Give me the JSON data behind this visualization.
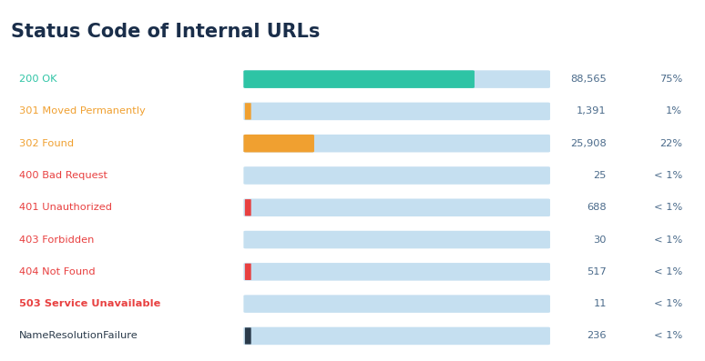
{
  "title": "Status Code of Internal URLs",
  "title_color": "#1a2e4a",
  "title_fontsize": 15,
  "background_color": "#ffffff",
  "panel_color": "#e8f4f9",
  "panel_border_color": "#b8dcea",
  "rows": [
    {
      "label": "200 OK",
      "label_color": "#2ec4a5",
      "bar_value": 75,
      "bar_color": "#2ec4a5",
      "count": "88,565",
      "pct": "75%",
      "tiny_bar": false,
      "bold": false
    },
    {
      "label": "301 Moved Permanently",
      "label_color": "#f0a030",
      "bar_value": 1.5,
      "bar_color": "#f0a030",
      "count": "1,391",
      "pct": "1%",
      "tiny_bar": true,
      "bold": false
    },
    {
      "label": "302 Found",
      "label_color": "#f0a030",
      "bar_value": 22,
      "bar_color": "#f0a030",
      "count": "25,908",
      "pct": "22%",
      "tiny_bar": false,
      "bold": false
    },
    {
      "label": "400 Bad Request",
      "label_color": "#e84040",
      "bar_value": 0,
      "bar_color": "#e84040",
      "count": "25",
      "pct": "< 1%",
      "tiny_bar": false,
      "bold": false
    },
    {
      "label": "401 Unauthorized",
      "label_color": "#e84040",
      "bar_value": 0.6,
      "bar_color": "#e84040",
      "count": "688",
      "pct": "< 1%",
      "tiny_bar": true,
      "bold": false
    },
    {
      "label": "403 Forbidden",
      "label_color": "#e84040",
      "bar_value": 0,
      "bar_color": "#e84040",
      "count": "30",
      "pct": "< 1%",
      "tiny_bar": false,
      "bold": false
    },
    {
      "label": "404 Not Found",
      "label_color": "#e84040",
      "bar_value": 0.5,
      "bar_color": "#e84040",
      "count": "517",
      "pct": "< 1%",
      "tiny_bar": true,
      "bold": false
    },
    {
      "label": "503 Service Unavailable",
      "label_color": "#e84040",
      "bar_value": 0,
      "bar_color": "#e84040",
      "count": "11",
      "pct": "< 1%",
      "tiny_bar": false,
      "bold": true
    },
    {
      "label": "NameResolutionFailure",
      "label_color": "#2a3a4a",
      "bar_value": 0.3,
      "bar_color": "#2a3a4a",
      "count": "236",
      "pct": "< 1%",
      "tiny_bar": true,
      "bold": false
    }
  ],
  "bar_max": 100,
  "bar_bg_color": "#c5dff0",
  "count_color": "#4a6a8a",
  "pct_color": "#4a6a8a"
}
